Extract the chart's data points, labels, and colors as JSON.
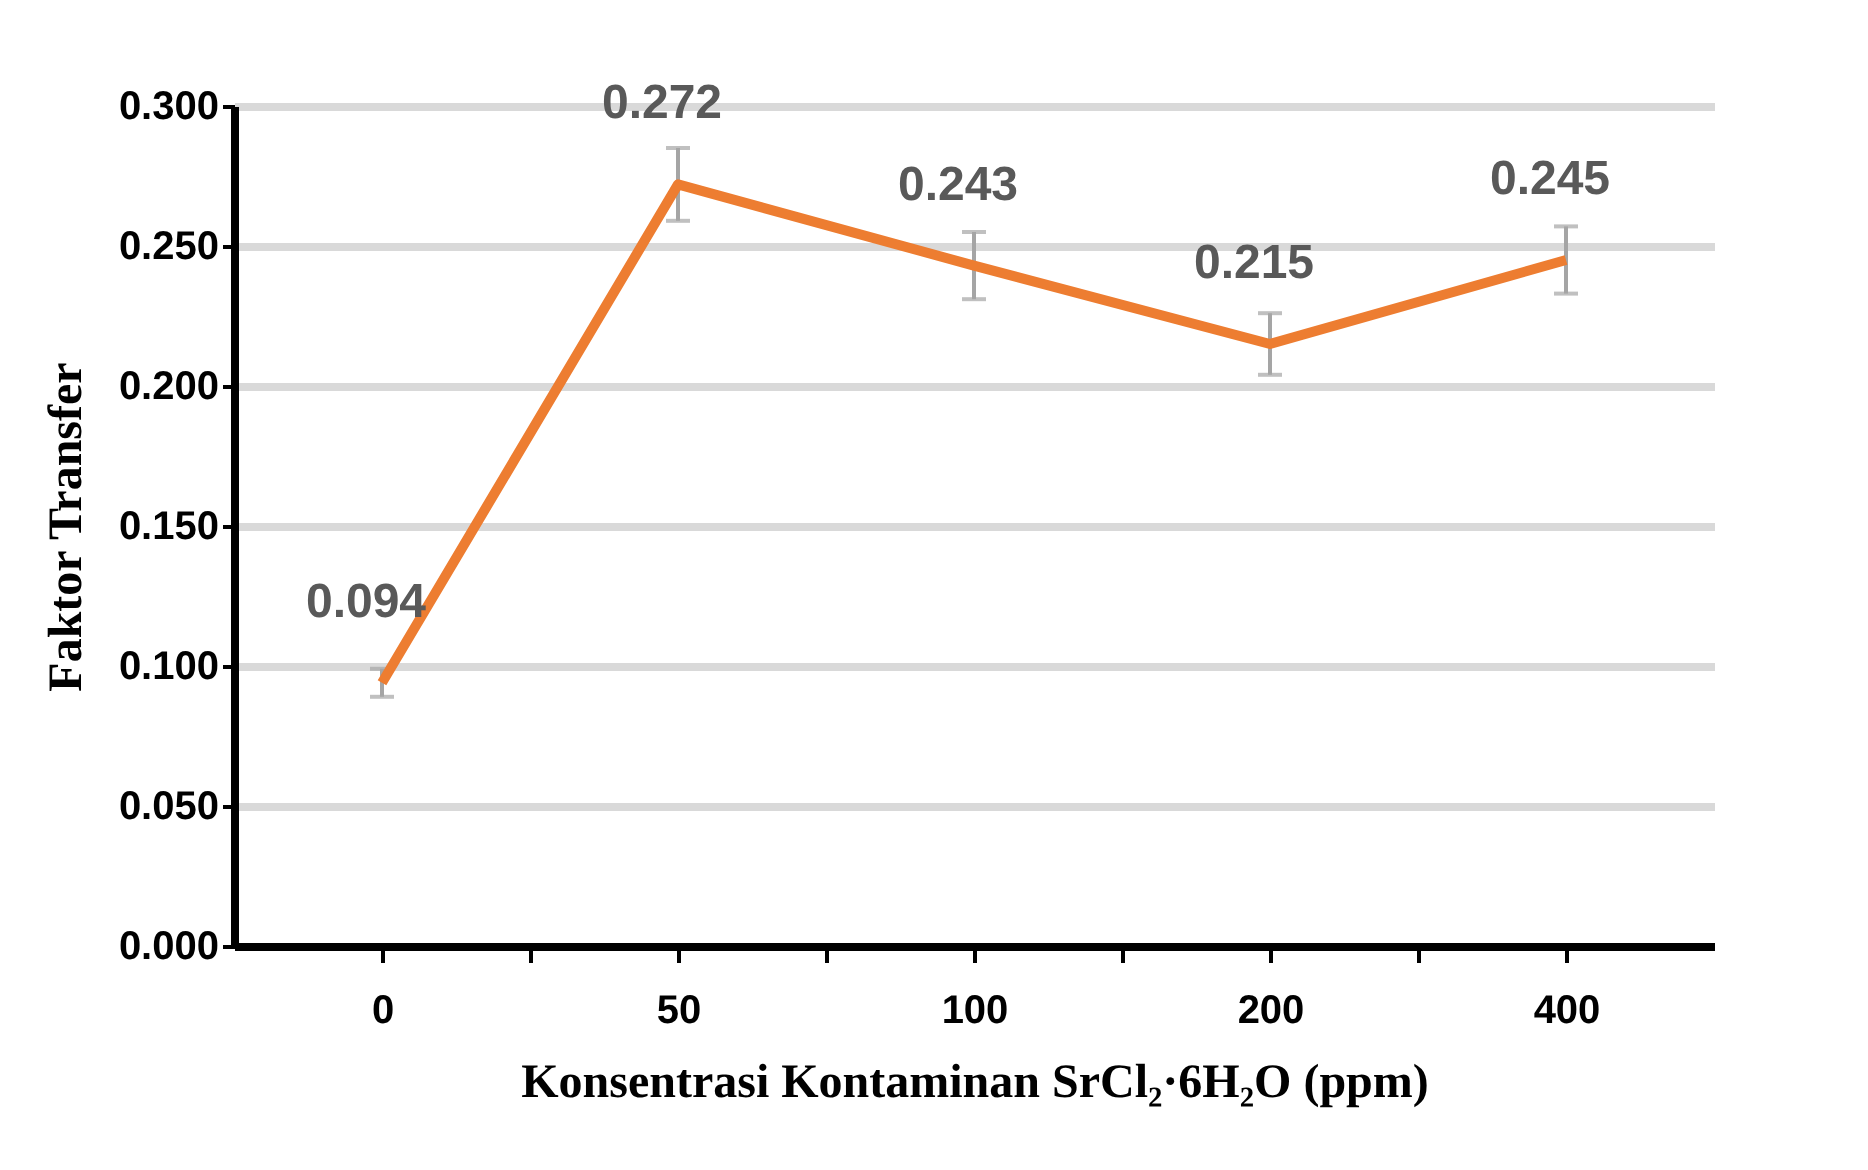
{
  "chart_data": {
    "type": "line",
    "xlabel": "Konsentrasi Kontaminan SrCl₂·6H₂O (ppm)",
    "ylabel": "Faktor Transfer",
    "categories": [
      "0",
      "50",
      "100",
      "200",
      "400"
    ],
    "series": [
      {
        "color": "#ed7d31",
        "values": [
          0.094,
          0.272,
          0.243,
          0.215,
          0.245
        ],
        "errors": [
          0.005,
          0.013,
          0.012,
          0.011,
          0.012
        ]
      }
    ],
    "ylim": [
      0,
      0.3
    ],
    "yticks": [
      {
        "value": 0,
        "label": "0.000"
      },
      {
        "value": 0.05,
        "label": "0.050"
      },
      {
        "value": 0.1,
        "label": "0.100"
      },
      {
        "value": 0.15,
        "label": "0.150"
      },
      {
        "value": 0.2,
        "label": "0.200"
      },
      {
        "value": 0.25,
        "label": "0.250"
      },
      {
        "value": 0.3,
        "label": "0.300"
      }
    ],
    "grid": "y",
    "data_labels": true,
    "marker": "none",
    "line_style": "solid"
  }
}
